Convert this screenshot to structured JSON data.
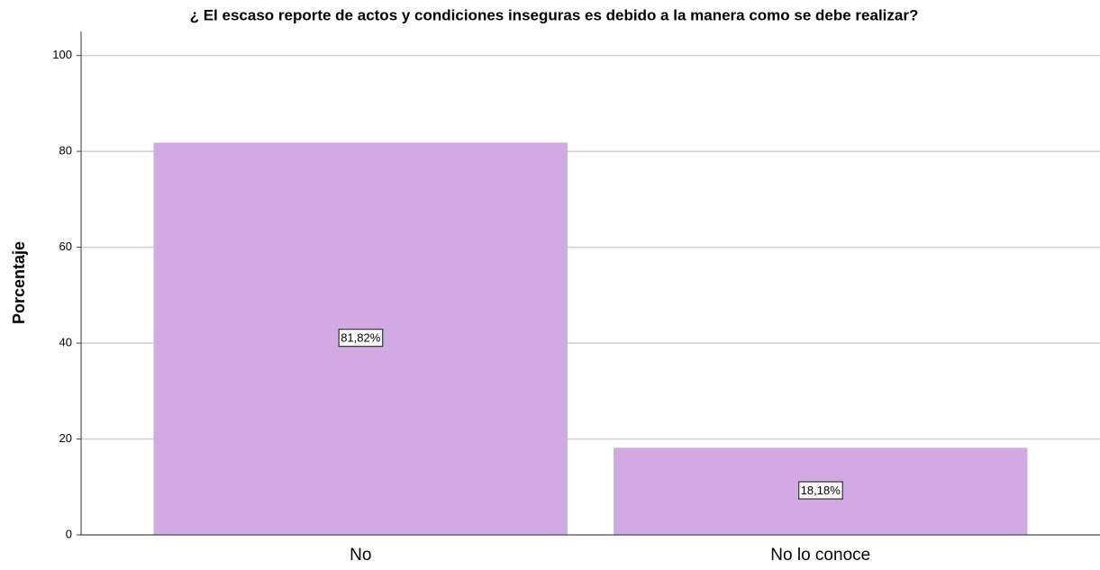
{
  "chart_data": {
    "type": "bar",
    "title": "¿ El escaso reporte de actos y condiciones inseguras es debido a la manera como se debe realizar?",
    "y_label": "Porcentaje",
    "categories": [
      "No",
      "No lo conoce"
    ],
    "values": [
      81.82,
      18.18
    ],
    "value_labels": [
      "81,82%",
      "18,18%"
    ],
    "color": "#d1aae4",
    "ylim": [
      0,
      105
    ],
    "yticks": [
      0,
      20,
      40,
      60,
      80,
      100
    ],
    "grid": true
  }
}
